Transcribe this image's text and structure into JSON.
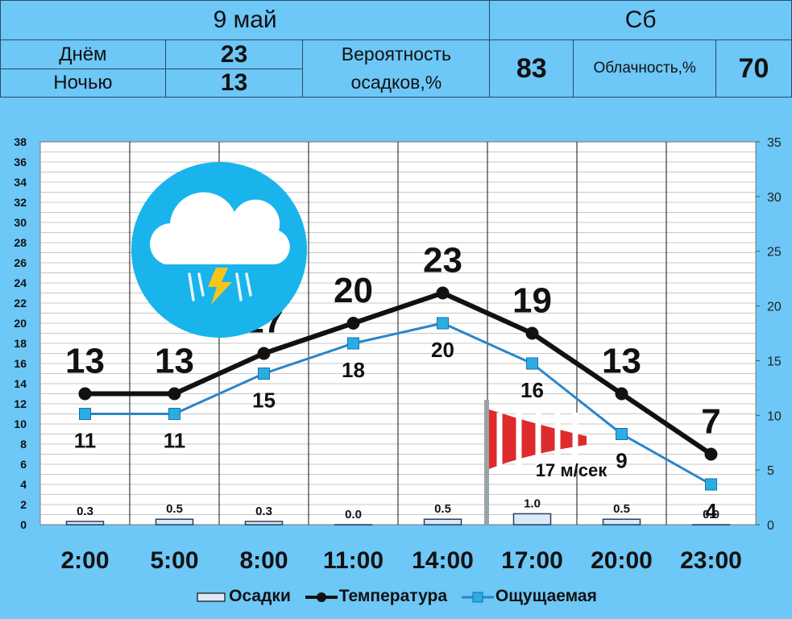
{
  "header": {
    "date": "9 май",
    "weekday": "Сб",
    "day_label": "Днём",
    "day_value": "23",
    "night_label": "Ночью",
    "night_value": "13",
    "precip_prob_label_1": "Вероятность",
    "precip_prob_label_2": "осадков,%",
    "precip_prob_value": "83",
    "cloudiness_label": "Облачность,%",
    "cloudiness_value": "70"
  },
  "weather_icon": "cloud-thunderstorm-rain-icon",
  "wind_icon": "windsock-icon",
  "wind_label": "17 м/сек",
  "colors": {
    "background": "#6dc7f7",
    "temperature": "#111111",
    "feels_like": "#2a85c8",
    "feels_like_marker": "#29aee2",
    "precipitation": "#7fb3e8",
    "icon_circle": "#19b4ec"
  },
  "chart_data": {
    "type": "line",
    "categories": [
      "2:00",
      "5:00",
      "8:00",
      "11:00",
      "14:00",
      "17:00",
      "20:00",
      "23:00"
    ],
    "series": [
      {
        "name": "Температура",
        "type": "line",
        "axis": "left",
        "values": [
          13,
          13,
          17,
          20,
          23,
          19,
          13,
          7
        ],
        "labels": [
          "13",
          "13",
          "17",
          "20",
          "23",
          "19",
          "13",
          "7"
        ]
      },
      {
        "name": "Ощущаемая",
        "type": "line",
        "axis": "left",
        "values": [
          11,
          11,
          15,
          18,
          20,
          16,
          9,
          4
        ],
        "labels": [
          "11",
          "11",
          "15",
          "18",
          "20",
          "16",
          "9",
          "4"
        ]
      },
      {
        "name": "Осадки",
        "type": "bar",
        "axis": "right",
        "values": [
          0.3,
          0.5,
          0.3,
          0.0,
          0.5,
          1.0,
          0.5,
          0.0
        ],
        "labels": [
          "0.3",
          "0.5",
          "0.3",
          "0.0",
          "0.5",
          "1.0",
          "0.5",
          "0.0"
        ]
      }
    ],
    "left_axis": {
      "ylim": [
        0,
        38
      ],
      "ticks": [
        "0",
        "2",
        "4",
        "6",
        "8",
        "10",
        "12",
        "14",
        "16",
        "18",
        "20",
        "22",
        "24",
        "26",
        "28",
        "30",
        "32",
        "34",
        "36",
        "38"
      ]
    },
    "right_axis": {
      "ylim": [
        0,
        35
      ],
      "ticks": [
        "0",
        "5",
        "10",
        "15",
        "20",
        "25",
        "30",
        "35"
      ]
    },
    "grid": true,
    "legend": "bottom"
  }
}
